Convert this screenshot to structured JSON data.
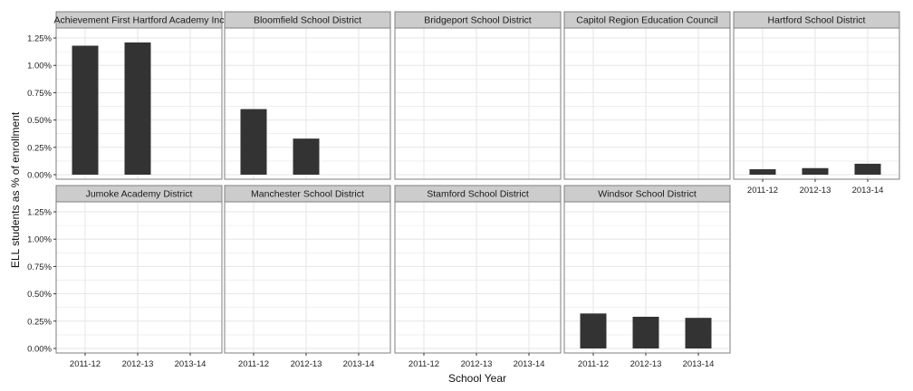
{
  "chart_data": {
    "type": "bar",
    "xlabel": "School Year",
    "ylabel": "ELL students as % of enrollment",
    "categories": [
      "2011-12",
      "2012-13",
      "2013-14"
    ],
    "y_ticks": [
      "0.00%",
      "0.25%",
      "0.50%",
      "0.75%",
      "1.00%",
      "1.25%"
    ],
    "ylim": [
      0,
      1.3
    ],
    "grid": true,
    "bar_color": "#333333",
    "strip_color": "#cccccc",
    "panel_border_color": "#7f7f7f",
    "grid_color": "#e6e6e6",
    "panels": [
      {
        "title": "Achievement First Hartford Academy Inc",
        "values": [
          1.18,
          1.21,
          null
        ]
      },
      {
        "title": "Bloomfield School District",
        "values": [
          0.6,
          0.33,
          null
        ]
      },
      {
        "title": "Bridgeport School District",
        "values": [
          null,
          null,
          null
        ]
      },
      {
        "title": "Capitol Region Education Council",
        "values": [
          null,
          null,
          null
        ]
      },
      {
        "title": "Hartford School District",
        "values": [
          0.05,
          0.06,
          0.1
        ]
      },
      {
        "title": "Jumoke Academy District",
        "values": [
          null,
          null,
          null
        ]
      },
      {
        "title": "Manchester School District",
        "values": [
          null,
          null,
          null
        ]
      },
      {
        "title": "Stamford School District",
        "values": [
          null,
          null,
          null
        ]
      },
      {
        "title": "Windsor School District",
        "values": [
          0.32,
          0.29,
          0.28
        ]
      }
    ]
  }
}
